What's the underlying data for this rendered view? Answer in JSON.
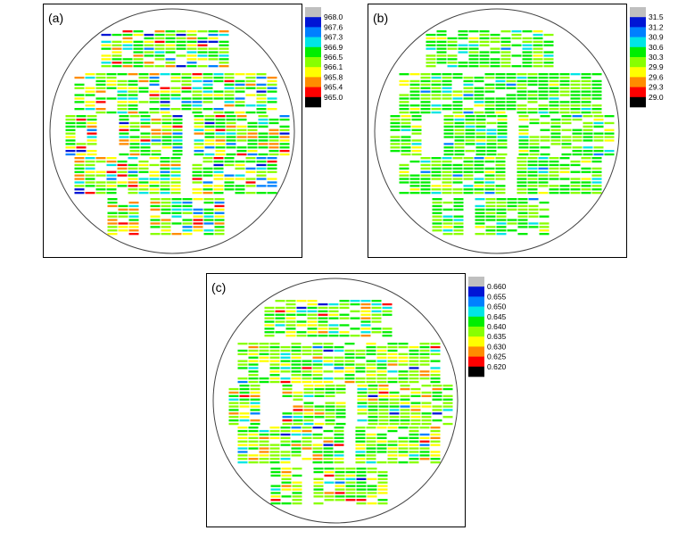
{
  "chart_data": [
    {
      "type": "heatmap",
      "panel_label": "(a)",
      "colorbar": {
        "ticks": [
          "968.0",
          "967.6",
          "967.3",
          "966.9",
          "966.5",
          "966.1",
          "965.8",
          "965.4",
          "965.0"
        ],
        "colors": [
          "#bfbfbf",
          "#0015d5",
          "#0080ff",
          "#00e5e5",
          "#00ee00",
          "#88ff00",
          "#ffff00",
          "#ff8c00",
          "#ff0000",
          "#000000"
        ]
      },
      "value_distribution": {
        "#00ee00": 0.3,
        "#88ff00": 0.24,
        "#ffff00": 0.14,
        "#00e5e5": 0.11,
        "#ff8c00": 0.08,
        "#ff0000": 0.05,
        "#0080ff": 0.05,
        "#0015d5": 0.03
      }
    },
    {
      "type": "heatmap",
      "panel_label": "(b)",
      "colorbar": {
        "ticks": [
          "31.5",
          "31.2",
          "30.9",
          "30.6",
          "30.3",
          "29.9",
          "29.6",
          "29.3",
          "29.0"
        ],
        "colors": [
          "#bfbfbf",
          "#0015d5",
          "#0080ff",
          "#00e5e5",
          "#00ee00",
          "#88ff00",
          "#ffff00",
          "#ff8c00",
          "#ff0000",
          "#000000"
        ]
      },
      "value_distribution": {
        "#00ee00": 0.5,
        "#88ff00": 0.35,
        "#00e5e5": 0.08,
        "#ffff00": 0.05,
        "#0080ff": 0.02
      }
    },
    {
      "type": "heatmap",
      "panel_label": "(c)",
      "colorbar": {
        "ticks": [
          "0.660",
          "0.655",
          "0.650",
          "0.645",
          "0.640",
          "0.635",
          "0.630",
          "0.625",
          "0.620"
        ],
        "colors": [
          "#bfbfbf",
          "#0015d5",
          "#0080ff",
          "#00e5e5",
          "#00ee00",
          "#88ff00",
          "#ffff00",
          "#ff8c00",
          "#ff0000",
          "#000000"
        ]
      },
      "value_distribution": {
        "#88ff00": 0.38,
        "#00ee00": 0.3,
        "#ffff00": 0.14,
        "#00e5e5": 0.08,
        "#ff8c00": 0.04,
        "#ff0000": 0.03,
        "#0080ff": 0.02,
        "#0015d5": 0.01
      }
    }
  ]
}
